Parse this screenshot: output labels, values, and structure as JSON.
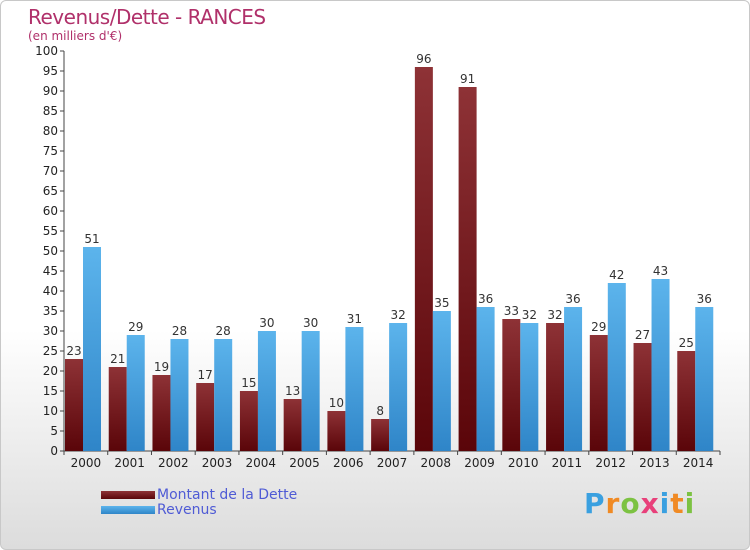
{
  "header": {
    "title": "Revenus/Dette - RANCES",
    "subtitle": "(en milliers d'€)"
  },
  "logo": {
    "letters": [
      "P",
      "r",
      "o",
      "x",
      "i",
      "t",
      "i"
    ],
    "colors": [
      "#3aa0e0",
      "#f08a24",
      "#7cc242",
      "#e8407a",
      "#3aa0e0",
      "#f08a24",
      "#7cc242"
    ]
  },
  "chart_data": {
    "type": "bar",
    "categories": [
      "2000",
      "2001",
      "2002",
      "2003",
      "2004",
      "2005",
      "2006",
      "2007",
      "2008",
      "2009",
      "2010",
      "2011",
      "2012",
      "2013",
      "2014"
    ],
    "series": [
      {
        "name": "Montant de la Dette",
        "color": "#7a1a1e",
        "values": [
          23,
          21,
          19,
          17,
          15,
          13,
          10,
          8,
          96,
          91,
          33,
          32,
          29,
          27,
          25
        ]
      },
      {
        "name": "Revenus",
        "color": "#3a9de0",
        "values": [
          51,
          29,
          28,
          28,
          30,
          30,
          31,
          32,
          35,
          36,
          32,
          36,
          42,
          43,
          36
        ]
      }
    ],
    "ylim": [
      0,
      100
    ],
    "ytick_step": 5,
    "grid": false,
    "legend": "bottom-left"
  }
}
